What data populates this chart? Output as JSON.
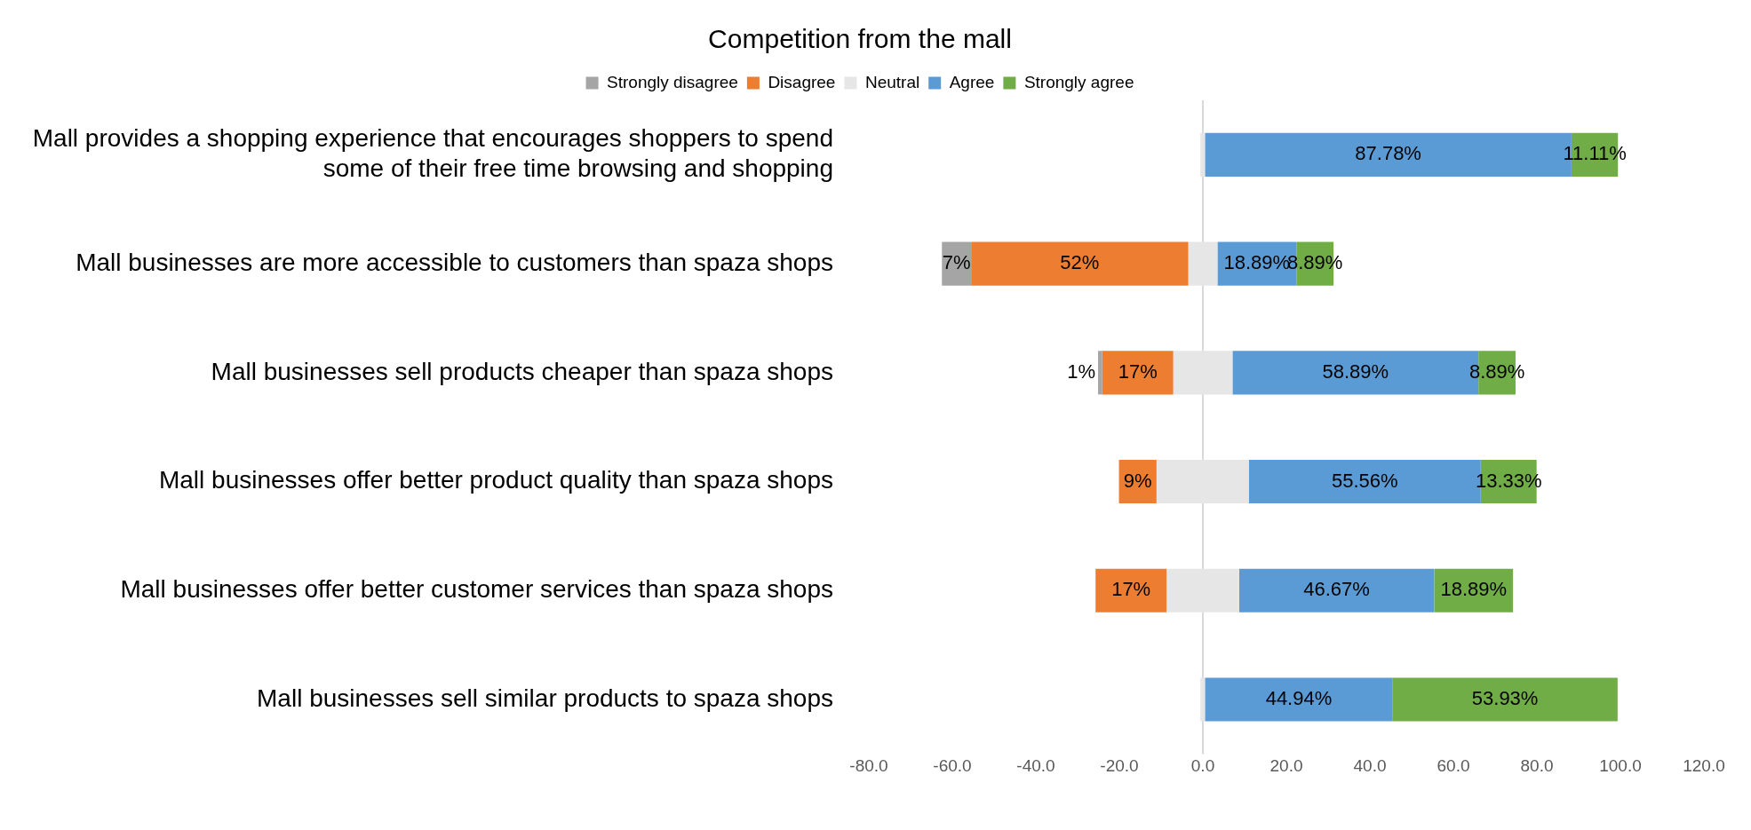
{
  "chart_data": {
    "type": "bar",
    "orientation": "horizontal",
    "title": "Competition from the mall",
    "categories": [
      "Mall provides a shopping experience that encourages shoppers to spend some of their free time browsing and shopping",
      "Mall businesses are more accessible to customers than spaza shops",
      "Mall businesses sell products cheaper than spaza shops",
      "Mall businesses offer better product quality than spaza shops",
      "Mall businesses offer better customer services than spaza shops",
      "Mall businesses sell similar products to spaza shops"
    ],
    "series": [
      {
        "name": "Strongly disagree",
        "color": "#a5a5a5",
        "values": [
          null,
          7,
          1,
          null,
          null,
          null
        ],
        "base": [
          null,
          -62.5,
          -25.1,
          null,
          null,
          null
        ],
        "value_labels": [
          null,
          "7%",
          "1%",
          null,
          null,
          null
        ]
      },
      {
        "name": "Disagree",
        "color": "#ed7d31",
        "values": [
          null,
          52,
          17,
          9,
          17,
          null
        ],
        "base": [
          null,
          -55.5,
          -24.1,
          -20.1,
          -25.7,
          null
        ],
        "value_labels": [
          null,
          "52%",
          "17%",
          "9%",
          "17%",
          null
        ]
      },
      {
        "name": "Neutral",
        "color": "#e7e6e6",
        "values": [
          1.1,
          7,
          14.2,
          22.1,
          17.4,
          1.1
        ],
        "base": [
          -0.6,
          -3.5,
          -7.1,
          -11.1,
          -8.7,
          -0.6
        ]
      },
      {
        "name": "Agree",
        "color": "#5b9bd5",
        "values": [
          87.78,
          18.89,
          58.89,
          55.56,
          46.67,
          44.94
        ],
        "base": [
          0.5,
          3.5,
          7.1,
          11,
          8.7,
          0.5
        ],
        "value_labels": [
          "87.78%",
          "18.89%",
          "58.89%",
          "55.56%",
          "46.67%",
          "44.94%"
        ]
      },
      {
        "name": "Strongly agree",
        "color": "#70ad47",
        "values": [
          11.11,
          8.89,
          8.89,
          13.33,
          18.89,
          53.93
        ],
        "base": [
          88.3,
          22.4,
          66,
          66.6,
          55.4,
          45.4
        ],
        "value_labels": [
          "11.11%",
          "8.89%",
          "8.89%",
          "13.33%",
          "18.89%",
          "53.93%"
        ]
      }
    ],
    "xlim": [
      -80,
      120
    ],
    "xticks": [
      {
        "value": -80,
        "label": "-80.0"
      },
      {
        "value": -60,
        "label": "-60.0"
      },
      {
        "value": -40,
        "label": "-40.0"
      },
      {
        "value": -20,
        "label": "-20.0"
      },
      {
        "value": 0,
        "label": "0.0"
      },
      {
        "value": 20,
        "label": "20.0"
      },
      {
        "value": 40,
        "label": "40.0"
      },
      {
        "value": 60,
        "label": "60.0"
      },
      {
        "value": 80,
        "label": "80.0"
      },
      {
        "value": 100,
        "label": "100.0"
      },
      {
        "value": 120,
        "label": "120.0"
      }
    ],
    "ref_lines": [
      {
        "axis": "x",
        "value": 0,
        "color": "#d9d9d9"
      }
    ],
    "legend": "top"
  }
}
